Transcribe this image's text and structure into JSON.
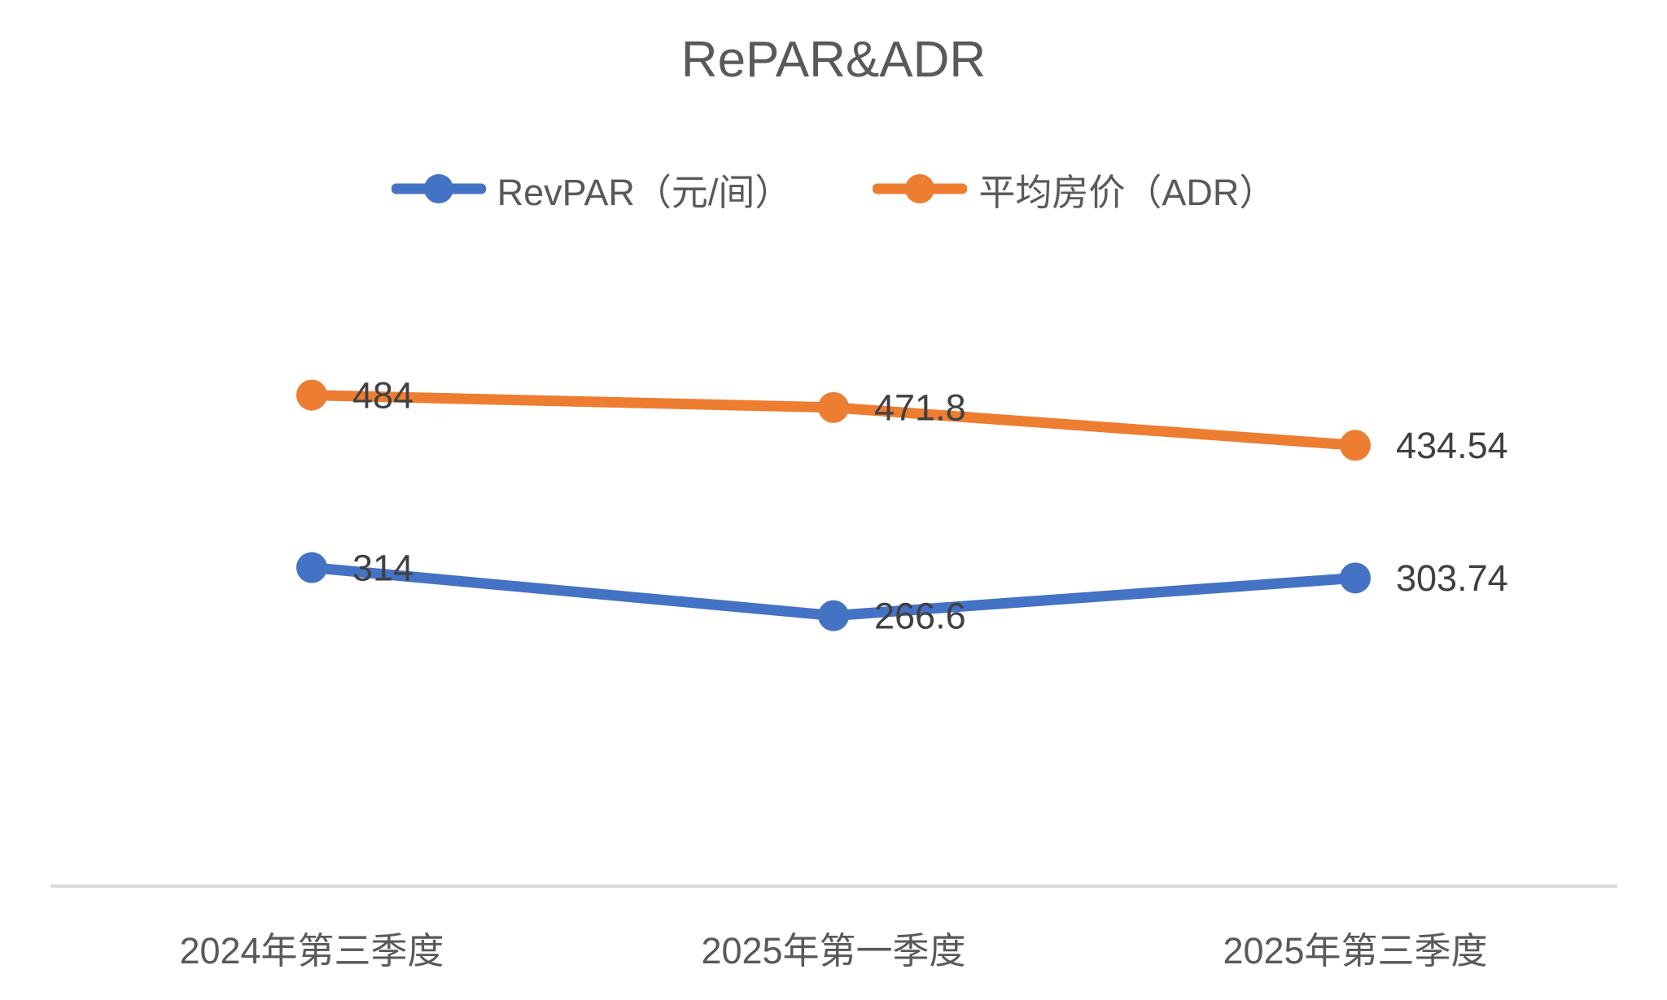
{
  "chart_data": {
    "type": "line",
    "title": "RePAR&ADR",
    "categories": [
      "2024年第三季度",
      "2025年第一季度",
      "2025年第三季度"
    ],
    "series": [
      {
        "name": "RevPAR（元/间）",
        "color": "#4472C4",
        "values": [
          314,
          266.6,
          303.74
        ],
        "labels": [
          "314",
          "266.6",
          "303.74"
        ]
      },
      {
        "name": "平均房价（ADR）",
        "color": "#ED7D31",
        "values": [
          484,
          471.8,
          434.54
        ],
        "labels": [
          "484",
          "471.8",
          "434.54"
        ]
      }
    ],
    "xlabel": "",
    "ylabel": "",
    "ylim": [
      0,
      600
    ],
    "grid": false,
    "legend_position": "top",
    "data_labels": true,
    "axis_line_color": "#D9D9D9",
    "text_color": "#595959",
    "data_label_color": "#404040",
    "background_color": "#FFFFFF"
  }
}
